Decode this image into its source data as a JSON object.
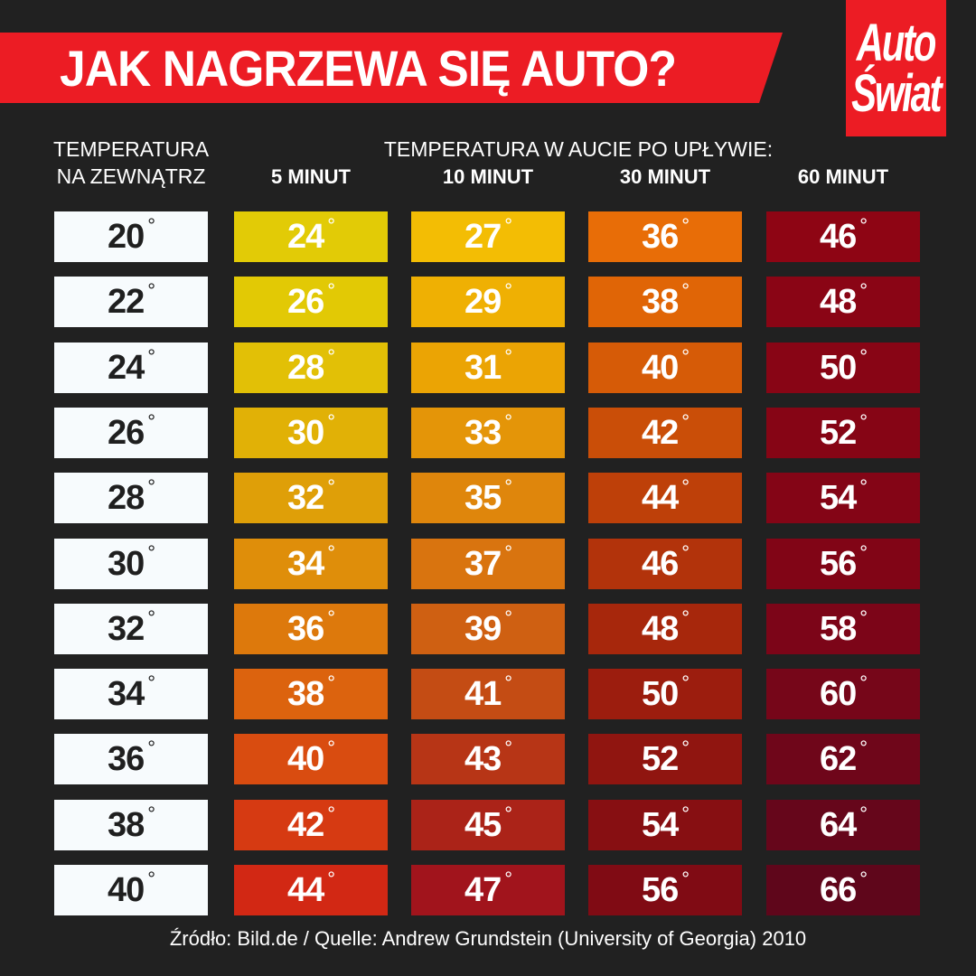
{
  "header": {
    "title": "JAK NAGRZEWA SIĘ AUTO?",
    "banner_color": "#ec1c24",
    "logo": {
      "line1": "Auto",
      "line2": "Świat"
    }
  },
  "table": {
    "outside_header": [
      "TEMPERATURA",
      "NA ZEWNĄTRZ"
    ],
    "inside_header": "TEMPERATURA W AUCIE PO UPŁYWIE:",
    "columns": [
      "5 MINUT",
      "10 MINUT",
      "30 MINUT",
      "60 MINUT"
    ],
    "degree_symbol": "°"
  },
  "chart_data": {
    "type": "table",
    "title": "JAK NAGRZEWA SIĘ AUTO?",
    "row_header": "TEMPERATURA NA ZEWNĄTRZ",
    "column_group_header": "TEMPERATURA W AUCIE PO UPŁYWIE:",
    "columns": [
      "5 MINUT",
      "10 MINUT",
      "30 MINUT",
      "60 MINUT"
    ],
    "unit": "°C",
    "outside": [
      20,
      22,
      24,
      26,
      28,
      30,
      32,
      34,
      36,
      38,
      40
    ],
    "series": [
      {
        "name": "5 MINUT",
        "values": [
          24,
          26,
          28,
          30,
          32,
          34,
          36,
          38,
          40,
          42,
          44
        ]
      },
      {
        "name": "10 MINUT",
        "values": [
          27,
          29,
          31,
          33,
          35,
          37,
          39,
          41,
          43,
          45,
          47
        ]
      },
      {
        "name": "30 MINUT",
        "values": [
          36,
          38,
          40,
          42,
          44,
          46,
          48,
          50,
          52,
          54,
          56
        ]
      },
      {
        "name": "60 MINUT",
        "values": [
          46,
          48,
          50,
          52,
          54,
          56,
          58,
          60,
          62,
          64,
          66
        ]
      }
    ],
    "colors": {
      "5 MINUT": [
        "#e2cb06",
        "#e2c905",
        "#e2c006",
        "#e1b106",
        "#df9f08",
        "#df8e0a",
        "#dd790c",
        "#dc630e",
        "#d94c10",
        "#d63a12",
        "#d22814"
      ],
      "10 MINUT": [
        "#f3bd04",
        "#efb003",
        "#eba404",
        "#e49508",
        "#df860c",
        "#d9740f",
        "#cf6012",
        "#c44c14",
        "#b73516",
        "#ab2318",
        "#a1141c"
      ],
      "30 MINUT": [
        "#e86d07",
        "#e06506",
        "#d65b07",
        "#ca4e08",
        "#be4009",
        "#b2330b",
        "#a7270c",
        "#9c1d0e",
        "#901510",
        "#870f12",
        "#800b14"
      ],
      "60 MINUT": [
        "#8e0514",
        "#8a0515",
        "#880515",
        "#860515",
        "#840516",
        "#810516",
        "#7c0518",
        "#760619",
        "#6f061a",
        "#66061b",
        "#5f061b"
      ]
    }
  },
  "footer": {
    "source": "Źródło: Bild.de / Quelle: Andrew Grundstein (University of Georgia) 2010"
  }
}
